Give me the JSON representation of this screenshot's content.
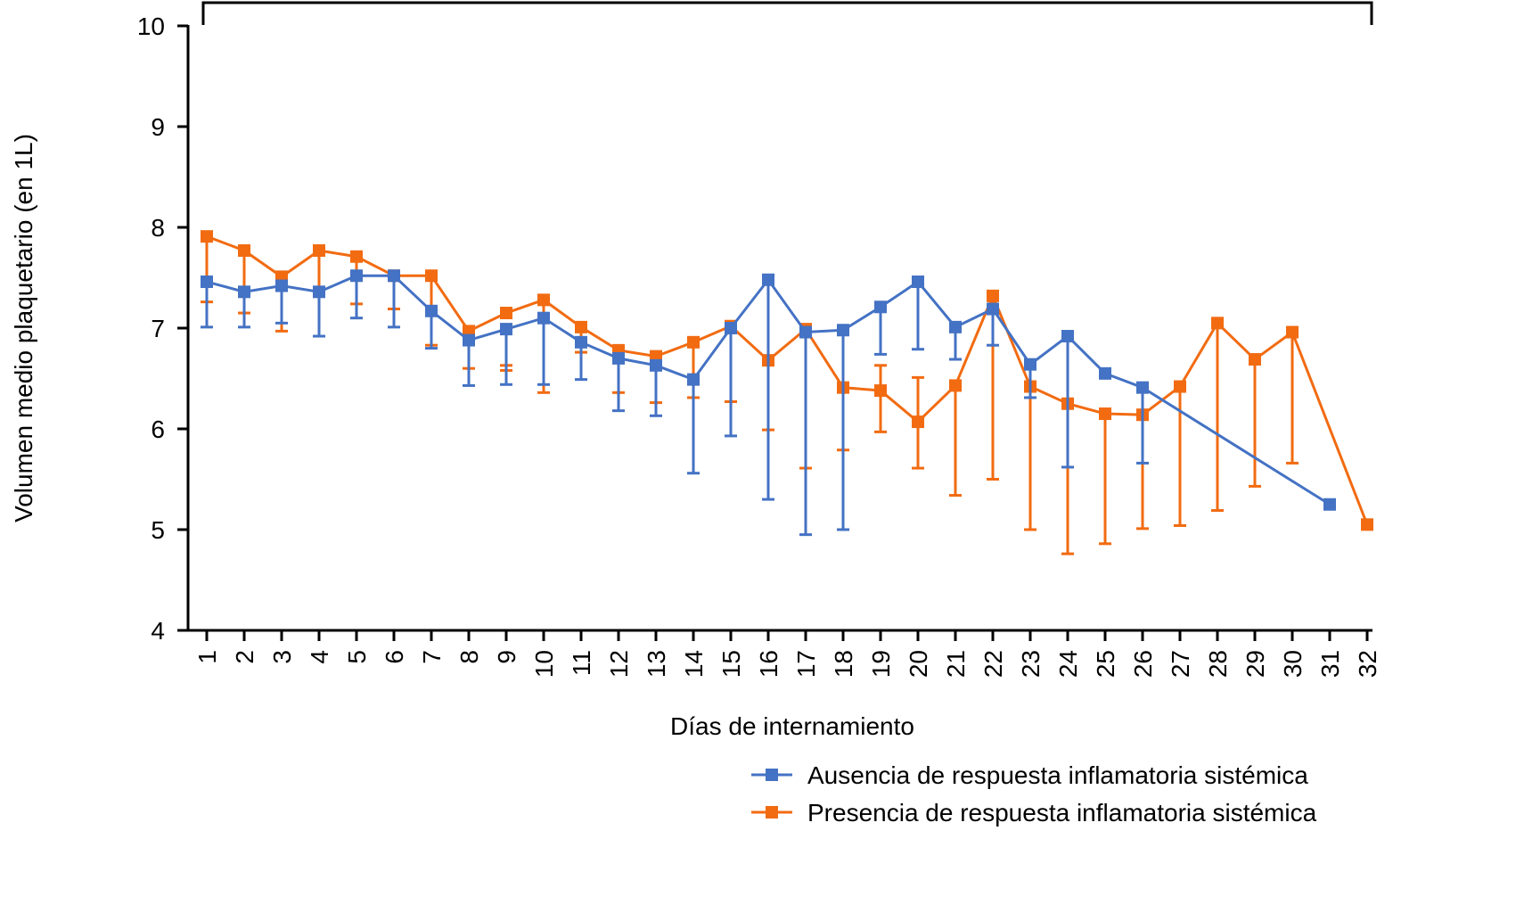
{
  "chart_data": {
    "type": "line",
    "title": "",
    "xlabel": "Días de internamiento",
    "ylabel": "Volumen medio plaquetario (en 1L)",
    "ylim": [
      4,
      10
    ],
    "yticks": [
      4,
      5,
      6,
      7,
      8,
      9,
      10
    ],
    "categories": [
      "1",
      "2",
      "3",
      "4",
      "5",
      "6",
      "7",
      "8",
      "9",
      "10",
      "11",
      "12",
      "13",
      "14",
      "15",
      "16",
      "17",
      "18",
      "19",
      "20",
      "21",
      "22",
      "23",
      "24",
      "25",
      "26",
      "27",
      "28",
      "29",
      "30",
      "31",
      "32"
    ],
    "grid": false,
    "legend_position": "bottom-right",
    "colors": {
      "blue": "#4472C4",
      "orange": "#F26B11"
    },
    "series": [
      {
        "name": "Ausencia de respuesta inflamatoria sistémica",
        "color": "#4472C4",
        "values": [
          7.46,
          7.36,
          7.42,
          7.36,
          7.52,
          7.52,
          7.17,
          6.88,
          6.99,
          7.1,
          6.86,
          6.7,
          6.63,
          6.49,
          7.0,
          7.48,
          6.96,
          6.98,
          7.21,
          7.46,
          7.01,
          7.19,
          6.64,
          6.92,
          6.55,
          6.41,
          null,
          null,
          null,
          null,
          5.25,
          null
        ],
        "error_lower": [
          7.01,
          7.01,
          7.05,
          6.92,
          7.1,
          7.01,
          6.8,
          6.43,
          6.44,
          6.44,
          6.49,
          6.18,
          6.13,
          5.56,
          5.93,
          5.3,
          4.95,
          5.0,
          6.74,
          6.79,
          6.69,
          6.83,
          6.31,
          5.62,
          null,
          5.66,
          null,
          null,
          null,
          null,
          null,
          null
        ],
        "error_upper": [
          null,
          null,
          null,
          null,
          null,
          null,
          null,
          null,
          null,
          null,
          null,
          null,
          null,
          null,
          null,
          null,
          null,
          null,
          null,
          null,
          null,
          null,
          null,
          null,
          null,
          null,
          null,
          null,
          null,
          null,
          null,
          null
        ]
      },
      {
        "name": "Presencia de respuesta inflamatoria sistémica",
        "color": "#F26B11",
        "values": [
          7.91,
          7.77,
          7.51,
          7.77,
          7.71,
          7.52,
          7.52,
          6.97,
          7.15,
          7.28,
          7.01,
          6.78,
          6.72,
          6.86,
          7.02,
          6.68,
          6.99,
          6.41,
          6.38,
          6.07,
          6.43,
          7.32,
          6.42,
          6.25,
          6.15,
          6.14,
          6.42,
          7.05,
          6.69,
          6.96,
          null,
          5.05
        ],
        "error_lower": [
          7.26,
          7.15,
          6.97,
          7.38,
          7.24,
          7.19,
          6.83,
          6.6,
          6.58,
          6.36,
          6.76,
          6.36,
          6.26,
          6.31,
          6.27,
          5.99,
          5.61,
          5.79,
          5.97,
          5.61,
          5.34,
          5.5,
          5.0,
          4.76,
          4.86,
          5.01,
          5.04,
          5.19,
          5.43,
          5.66,
          null,
          null
        ],
        "error_upper": [
          null,
          null,
          null,
          null,
          null,
          null,
          null,
          null,
          6.63,
          null,
          null,
          null,
          null,
          null,
          null,
          null,
          null,
          null,
          6.63,
          6.51,
          null,
          null,
          null,
          null,
          null,
          null,
          null,
          null,
          null,
          null,
          null,
          null
        ]
      }
    ]
  }
}
